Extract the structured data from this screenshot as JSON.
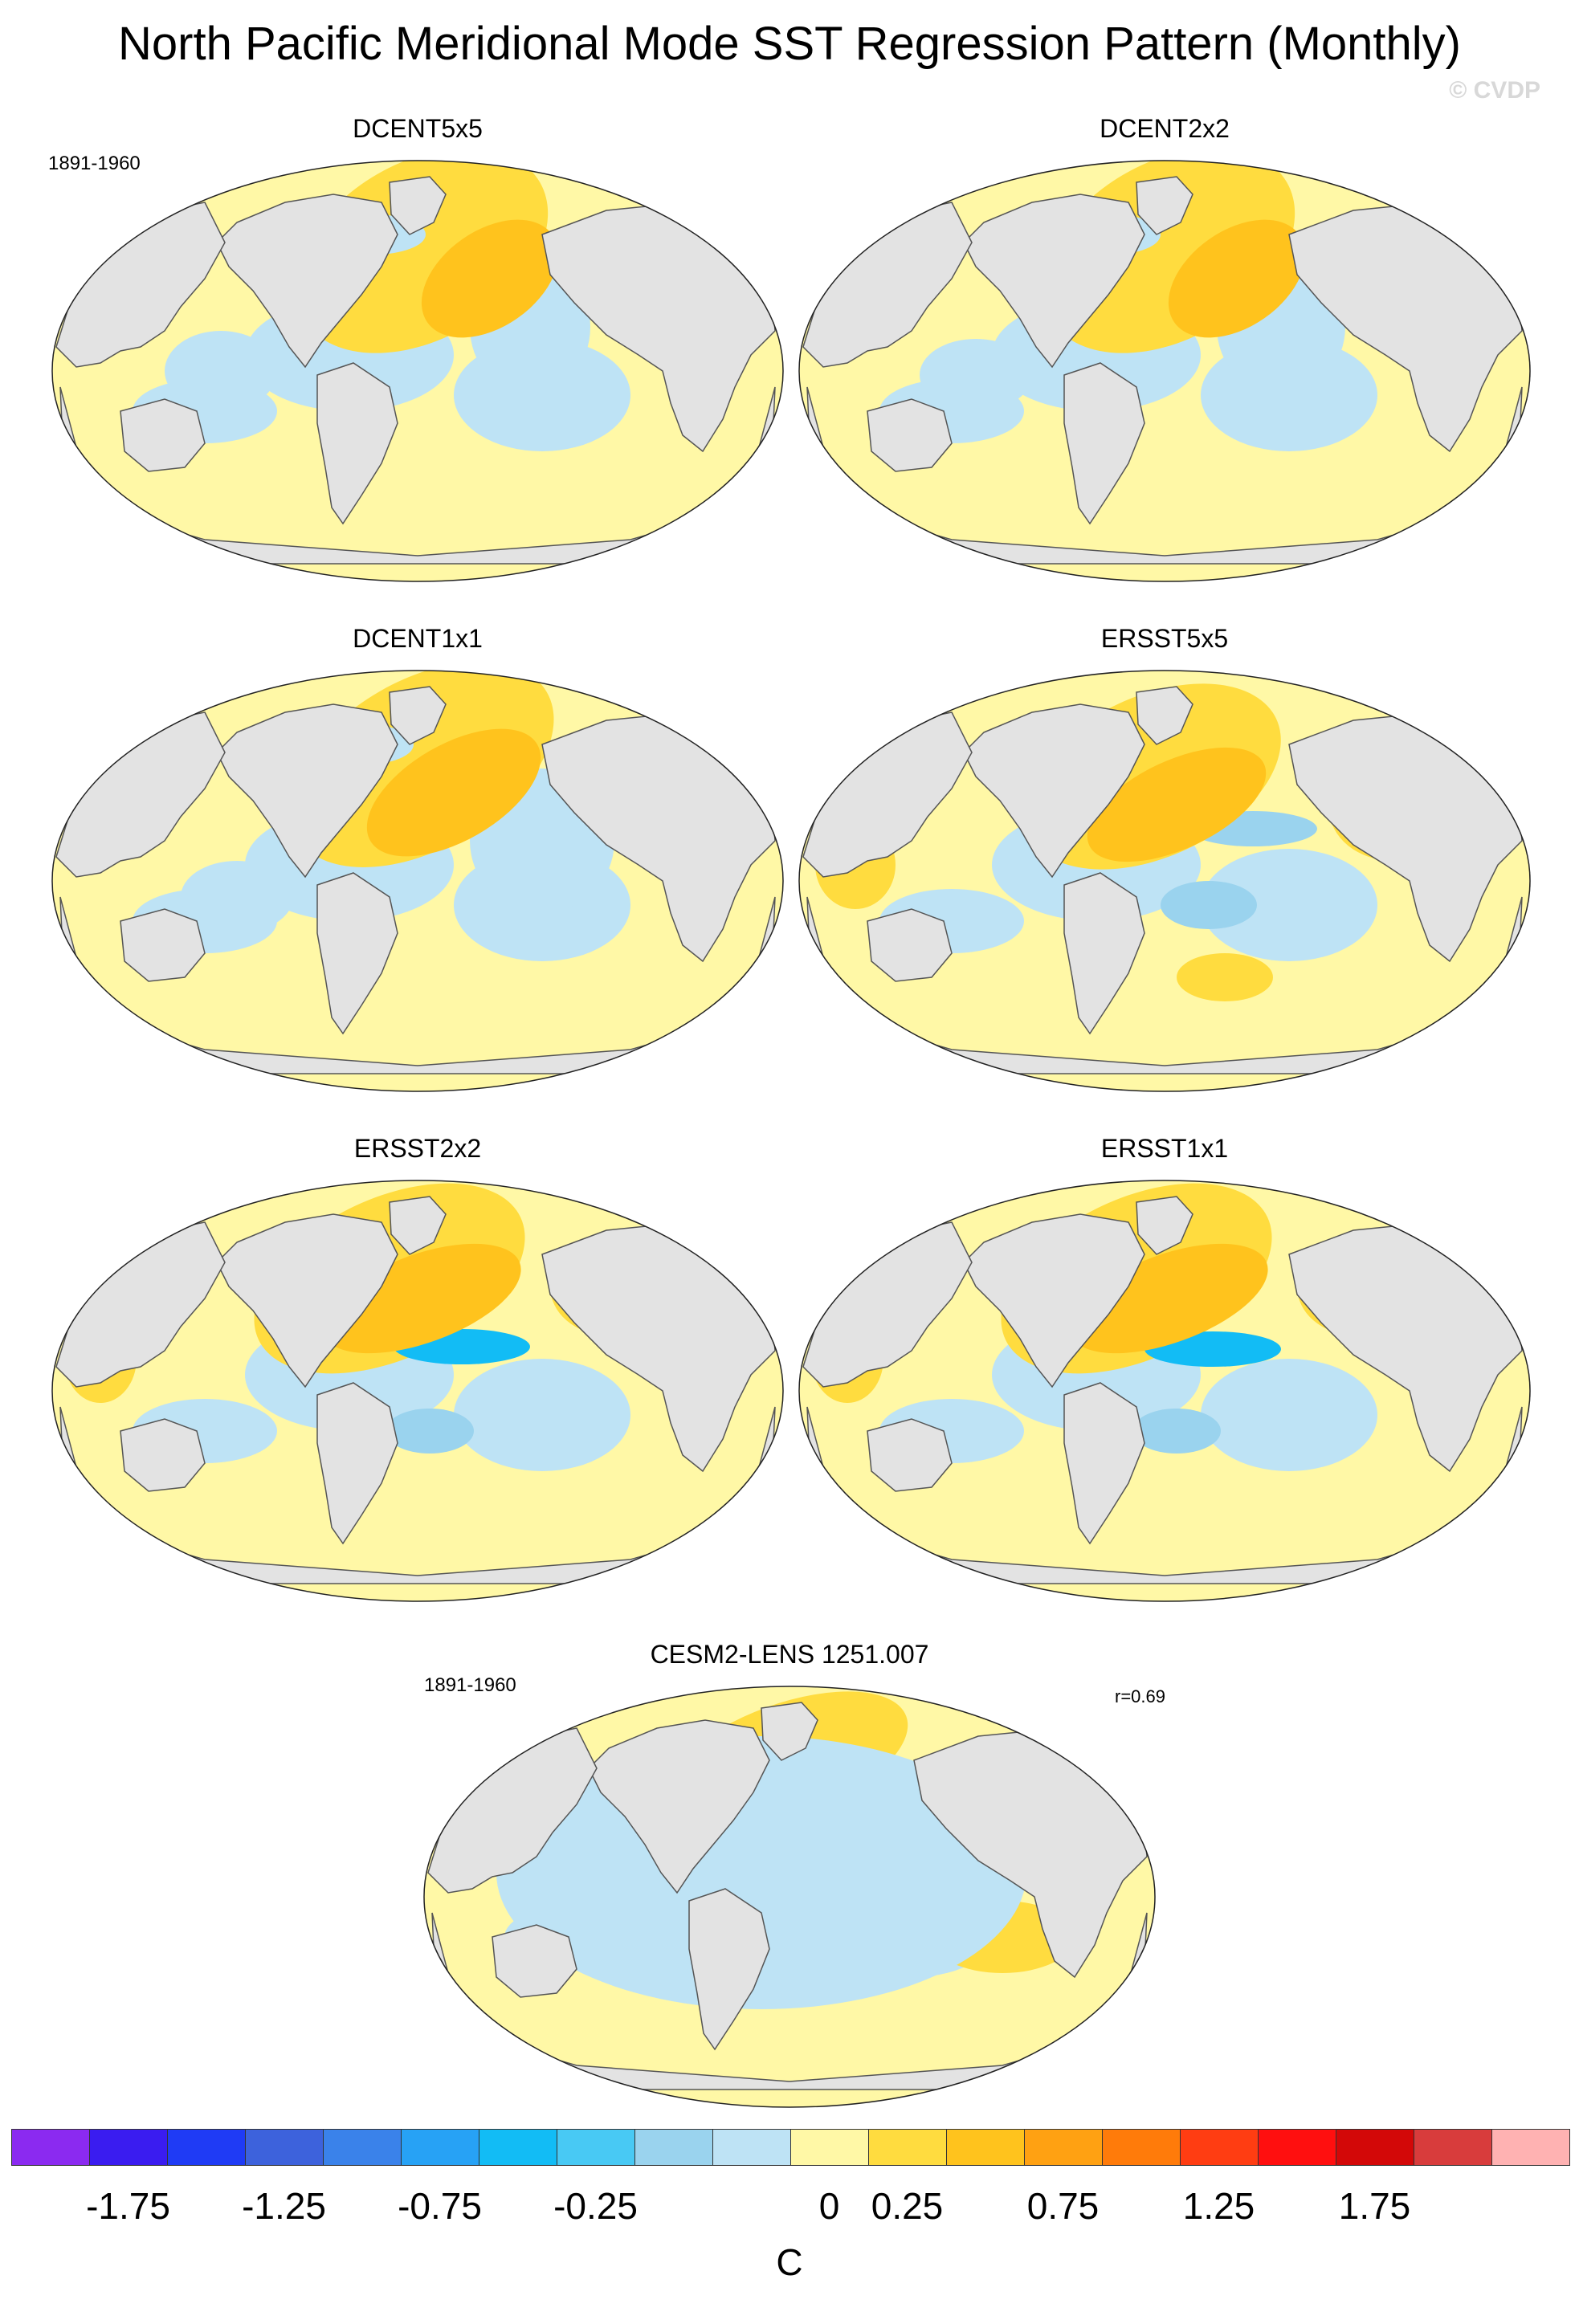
{
  "title": "North Pacific Meridional Mode SST Regression Pattern (Monthly)",
  "credit": "© CVDP",
  "period_top": "1891-1960",
  "period_bottom": "1891-1960",
  "correlation": "r=0.69",
  "panels": [
    {
      "name": "DCENT5x5"
    },
    {
      "name": "DCENT2x2"
    },
    {
      "name": "DCENT1x1"
    },
    {
      "name": "ERSST5x5"
    },
    {
      "name": "ERSST2x2"
    },
    {
      "name": "ERSST1x1"
    },
    {
      "name": "CESM2-LENS 1251.007"
    }
  ],
  "colorbar": {
    "units": "C",
    "colors": [
      "#8b2af0",
      "#3a1cf0",
      "#1f3bf5",
      "#3d62dc",
      "#3a82ea",
      "#27a2f5",
      "#12bcf5",
      "#48c9f4",
      "#9ad3ee",
      "#bee3f5",
      "#fff8a6",
      "#ffdc3f",
      "#ffc31d",
      "#ffa112",
      "#ff7b0a",
      "#ff3d12",
      "#ff0f0f",
      "#d30808",
      "#d83c3c",
      "#ffb2b2"
    ],
    "tick_labels": [
      "-1.75",
      "-1.25",
      "-0.75",
      "-0.25",
      "0",
      "0.25",
      "0.75",
      "1.25",
      "1.75"
    ],
    "tick_boundaries": [
      1,
      3,
      5,
      7,
      10,
      11,
      13,
      15,
      17
    ]
  },
  "palette": {
    "land": "#e3e3e3",
    "coast": "#555555",
    "ocean_pos_weak": "#fff8a6",
    "ocean_neg_weak": "#bee3f5"
  }
}
